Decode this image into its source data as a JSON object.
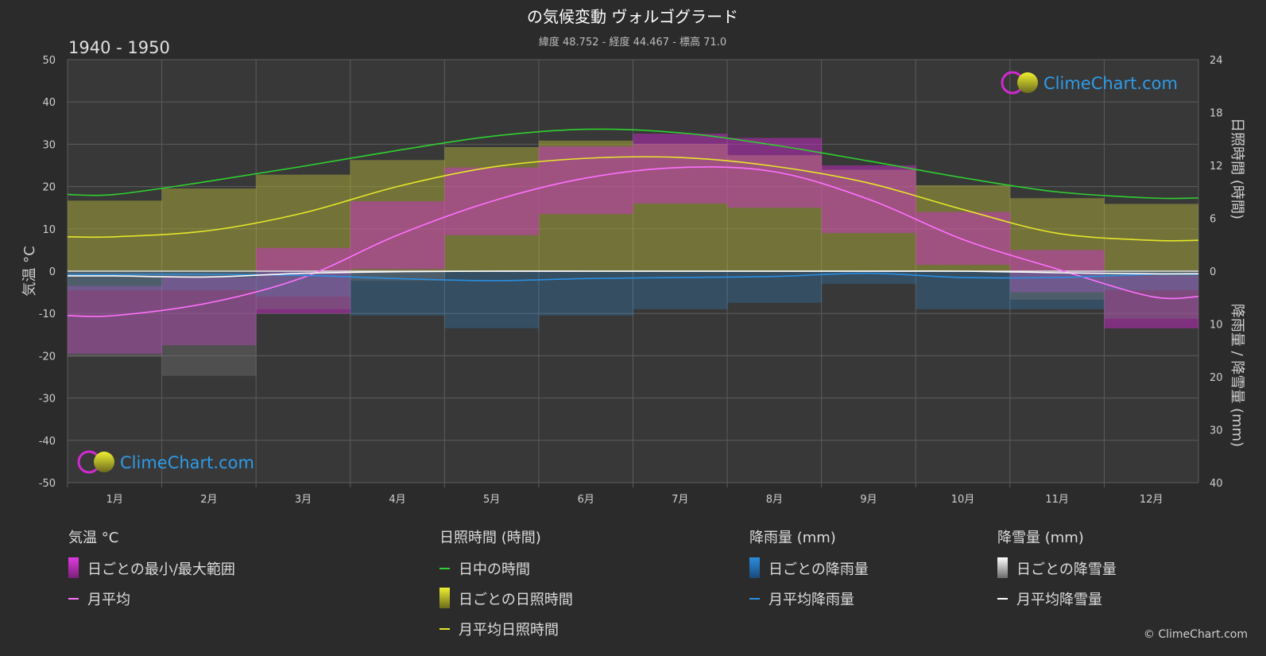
{
  "title": "の気候変動 ヴォルゴグラード",
  "subtitle": "緯度 48.752 - 経度 44.467 - 標高 71.0",
  "period": "1940 - 1950",
  "logo_text": "ClimeChart.com",
  "copyright": "© ClimeChart.com",
  "colors": {
    "background": "#2b2b2b",
    "plot_background": "#3a3a3a",
    "grid": "#5c5c5c",
    "daylight": "#2fd12f",
    "sunshine_band": "#a3a33a",
    "sunshine_line": "#e6e62a",
    "temp_range": "#d62ad6",
    "temp_mean": "#ff70ff",
    "rain": "#2a8ee0",
    "snow": "#e8e8e8",
    "logo": "#2f9be8"
  },
  "axes": {
    "left_label": "気温 °C",
    "right_top_label": "日照時間 (時間)",
    "right_bottom_label": "降雨量 / 降雪量 (mm)",
    "left_ticks": [
      "50",
      "40",
      "30",
      "20",
      "10",
      "0",
      "-10",
      "-20",
      "-30",
      "-40",
      "-50"
    ],
    "right_top_ticks": [
      "24",
      "18",
      "12",
      "6",
      "0"
    ],
    "right_bottom_ticks": [
      "10",
      "20",
      "30",
      "40"
    ]
  },
  "legend": {
    "groups": [
      {
        "header": "気温 °C",
        "items": [
          {
            "label": "日ごとの最小/最大範囲",
            "icon": "swatch-temp-range"
          },
          {
            "label": "月平均",
            "icon": "line-temp-mean"
          }
        ]
      },
      {
        "header": "日照時間 (時間)",
        "items": [
          {
            "label": "日中の時間",
            "icon": "line-daylight"
          },
          {
            "label": "日ごとの日照時間",
            "icon": "swatch-sunshine"
          },
          {
            "label": "月平均日照時間",
            "icon": "line-sunshine"
          }
        ]
      },
      {
        "header": "降雨量 (mm)",
        "items": [
          {
            "label": "日ごとの降雨量",
            "icon": "swatch-rain"
          },
          {
            "label": "月平均降雨量",
            "icon": "line-rain"
          }
        ]
      },
      {
        "header": "降雪量 (mm)",
        "items": [
          {
            "label": "日ごとの降雪量",
            "icon": "swatch-snow"
          },
          {
            "label": "月平均降雪量",
            "icon": "line-snow"
          }
        ]
      }
    ]
  },
  "chart_data": {
    "type": "line",
    "categories": [
      "1月",
      "2月",
      "3月",
      "4月",
      "5月",
      "6月",
      "7月",
      "8月",
      "9月",
      "10月",
      "11月",
      "12月"
    ],
    "temp_ylim": [
      -50,
      50
    ],
    "sunshine_ylim": [
      0,
      24
    ],
    "precip_ylim": [
      0,
      40
    ],
    "grid": true,
    "series": [
      {
        "name": "日中の時間",
        "axis": "sunshine",
        "values": [
          8.7,
          10.2,
          11.9,
          13.7,
          15.3,
          16.1,
          15.7,
          14.3,
          12.5,
          10.6,
          9.0,
          8.3
        ]
      },
      {
        "name": "月平均日照時間",
        "axis": "sunshine",
        "values": [
          3.9,
          4.6,
          6.6,
          9.6,
          11.8,
          12.8,
          12.9,
          11.9,
          10.0,
          7.0,
          4.3,
          3.5
        ]
      },
      {
        "name": "月平均",
        "axis": "temperature",
        "values": [
          -10.5,
          -7.5,
          -1.5,
          8.5,
          16.5,
          22.0,
          24.5,
          23.5,
          17.0,
          7.5,
          0.5,
          -6.0
        ]
      },
      {
        "name": "月平均降雨量",
        "axis": "precipitation",
        "values": [
          0.6,
          0.6,
          0.8,
          1.4,
          1.8,
          1.4,
          1.2,
          1.0,
          0.4,
          1.2,
          1.2,
          0.6
        ]
      },
      {
        "name": "月平均降雪量",
        "axis": "precipitation",
        "values": [
          0.9,
          1.1,
          0.4,
          0.1,
          0.0,
          0.0,
          0.0,
          0.0,
          0.0,
          0.0,
          0.3,
          0.5
        ]
      }
    ],
    "temp_range": {
      "name": "日ごとの最小/最大範囲",
      "min": [
        -19.5,
        -17.5,
        -10.0,
        0.5,
        8.5,
        13.5,
        16.0,
        15.0,
        9.0,
        1.5,
        -5.0,
        -13.5
      ],
      "max": [
        -3.5,
        -1.5,
        5.5,
        16.5,
        24.5,
        29.5,
        32.5,
        31.5,
        25.0,
        14.0,
        5.0,
        -1.0
      ]
    },
    "sunshine_band": {
      "name": "日ごとの日照時間",
      "min": 0,
      "max_ref": "日中の時間"
    }
  }
}
